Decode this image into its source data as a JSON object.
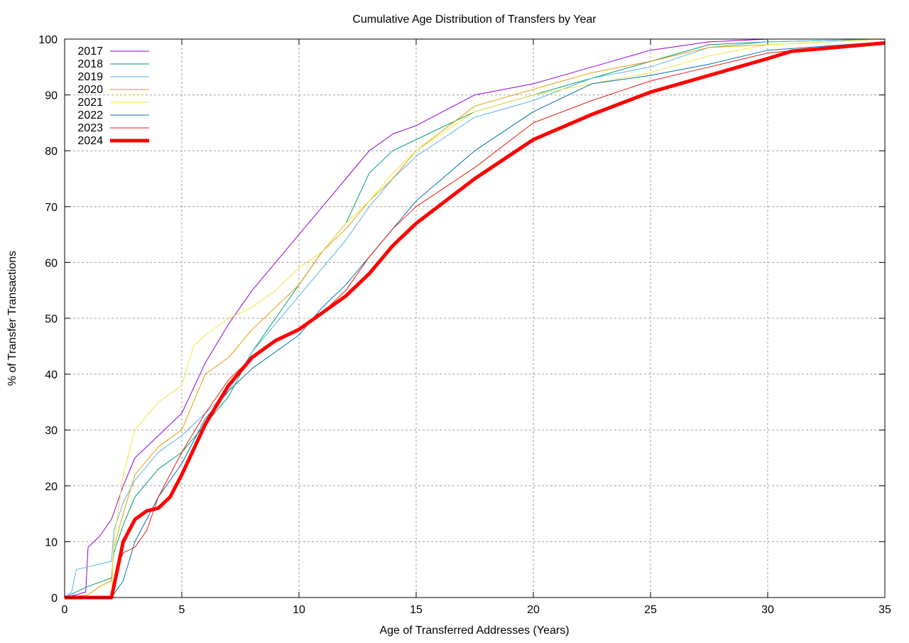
{
  "chart_data": {
    "type": "line",
    "title": "Cumulative Age Distribution of Transfers by Year",
    "xlabel": "Age of Transferred Addresses (Years)",
    "ylabel": "% of Transfer Transactions",
    "xlim": [
      0,
      35
    ],
    "ylim": [
      0,
      100
    ],
    "xticks": [
      0,
      5,
      10,
      15,
      20,
      25,
      30,
      35
    ],
    "yticks": [
      0,
      10,
      20,
      30,
      40,
      50,
      60,
      70,
      80,
      90,
      100
    ],
    "grid": true,
    "legend_position": "top-left",
    "series": [
      {
        "name": "2017",
        "color": "#9400d3",
        "width": 1,
        "x": [
          0,
          0.5,
          0.9,
          1.0,
          1.5,
          2,
          2.5,
          3,
          4,
          5,
          6,
          7,
          8,
          9,
          10,
          11,
          12,
          13,
          14,
          15,
          17.5,
          20,
          22.5,
          25,
          27.5,
          30,
          35
        ],
        "y": [
          0,
          0.5,
          1,
          9,
          11,
          14,
          20,
          25,
          29,
          33,
          42,
          49,
          55,
          60,
          65,
          70,
          75,
          80,
          83,
          84.5,
          90,
          92,
          95,
          98,
          99.5,
          100,
          100
        ]
      },
      {
        "name": "2018",
        "color": "#009e73",
        "width": 1,
        "x": [
          0,
          0.5,
          1,
          2,
          2.1,
          2.5,
          3,
          4,
          5,
          6,
          7,
          8,
          9,
          10,
          11,
          12,
          13,
          14,
          15,
          17.5,
          20,
          22.5,
          25,
          27.5,
          30,
          35
        ],
        "y": [
          0,
          1,
          2,
          3.5,
          8,
          13,
          18,
          23,
          26,
          31,
          36,
          44,
          50,
          56,
          62,
          67,
          76,
          80,
          82,
          87,
          90,
          93,
          96,
          99,
          99.5,
          100
        ]
      },
      {
        "name": "2019",
        "color": "#56b4e9",
        "width": 1,
        "x": [
          0,
          0.3,
          0.5,
          1,
          2,
          2.1,
          2.5,
          3,
          4,
          5,
          6,
          7,
          8,
          9,
          10,
          11,
          12,
          13,
          14,
          15,
          17.5,
          20,
          22.5,
          25,
          27.5,
          30,
          35
        ],
        "y": [
          0,
          1,
          5,
          5.5,
          6.5,
          12,
          17,
          21,
          26,
          29,
          33,
          37,
          44,
          49,
          54,
          59,
          64,
          70,
          75,
          79,
          86,
          89,
          93,
          95,
          98.5,
          99.5,
          100
        ]
      },
      {
        "name": "2020",
        "color": "#e69f00",
        "width": 1,
        "x": [
          0,
          1,
          1.5,
          2,
          2.1,
          2.5,
          3,
          4,
          5,
          6,
          7,
          8,
          9,
          10,
          11,
          12,
          13,
          14,
          15,
          17.5,
          20,
          22.5,
          25,
          27.5,
          30,
          35
        ],
        "y": [
          0,
          0.5,
          2,
          3,
          9,
          15,
          22,
          27,
          30,
          40,
          43,
          48,
          52,
          56,
          62,
          66,
          71,
          75,
          80,
          88,
          91,
          94,
          96,
          98.5,
          99,
          100
        ]
      },
      {
        "name": "2021",
        "color": "#f0e442",
        "width": 1,
        "x": [
          0,
          2,
          2.1,
          2.5,
          3,
          4,
          5,
          5.5,
          6,
          7,
          8,
          9,
          10,
          11,
          12,
          13,
          14,
          15,
          17.5,
          20,
          22.5,
          25,
          27.5,
          30,
          35
        ],
        "y": [
          0,
          0,
          10,
          22,
          30,
          35,
          38,
          45,
          47,
          50,
          52,
          55,
          59,
          62,
          67,
          71,
          76,
          80,
          87,
          90,
          92,
          94,
          97,
          99,
          100
        ]
      },
      {
        "name": "2022",
        "color": "#0072b2",
        "width": 1,
        "x": [
          0,
          2,
          2.5,
          3,
          4,
          5,
          6,
          7,
          8,
          9,
          10,
          11,
          12,
          13,
          14,
          15,
          17.5,
          20,
          22.5,
          25,
          27.5,
          30,
          35
        ],
        "y": [
          0,
          0,
          3,
          10,
          18,
          24,
          32,
          37,
          41,
          44,
          47,
          52,
          56,
          61,
          66,
          71,
          80,
          87,
          92,
          93.5,
          95.5,
          98,
          99.5
        ]
      },
      {
        "name": "2023",
        "color": "#e51e10",
        "width": 1,
        "x": [
          0,
          2,
          2.2,
          2.5,
          3,
          3.5,
          4,
          5,
          6,
          7,
          8,
          9,
          10,
          11,
          12,
          13,
          14,
          15,
          17.5,
          20,
          22.5,
          25,
          27.5,
          30,
          35
        ],
        "y": [
          0,
          0,
          5,
          8,
          9,
          12,
          18,
          26,
          33,
          39,
          43,
          46,
          48,
          51,
          55,
          61,
          66,
          70,
          77,
          85,
          89,
          92.5,
          95,
          97.5,
          99.5
        ]
      },
      {
        "name": "2024",
        "color": "#ff0000",
        "width": 5,
        "x": [
          0,
          2,
          2.5,
          3,
          3.5,
          4,
          4.5,
          5,
          6,
          7,
          8,
          9,
          10,
          11,
          12,
          13,
          14,
          15,
          17.5,
          20,
          22.5,
          25,
          27.5,
          30,
          31,
          35
        ],
        "y": [
          0,
          0,
          10,
          14,
          15.5,
          16,
          18,
          22,
          31,
          38,
          43,
          46,
          48,
          51,
          54,
          58,
          63,
          67,
          75,
          82,
          86.5,
          90.5,
          93.5,
          96.5,
          97.8,
          99.3
        ]
      }
    ]
  }
}
